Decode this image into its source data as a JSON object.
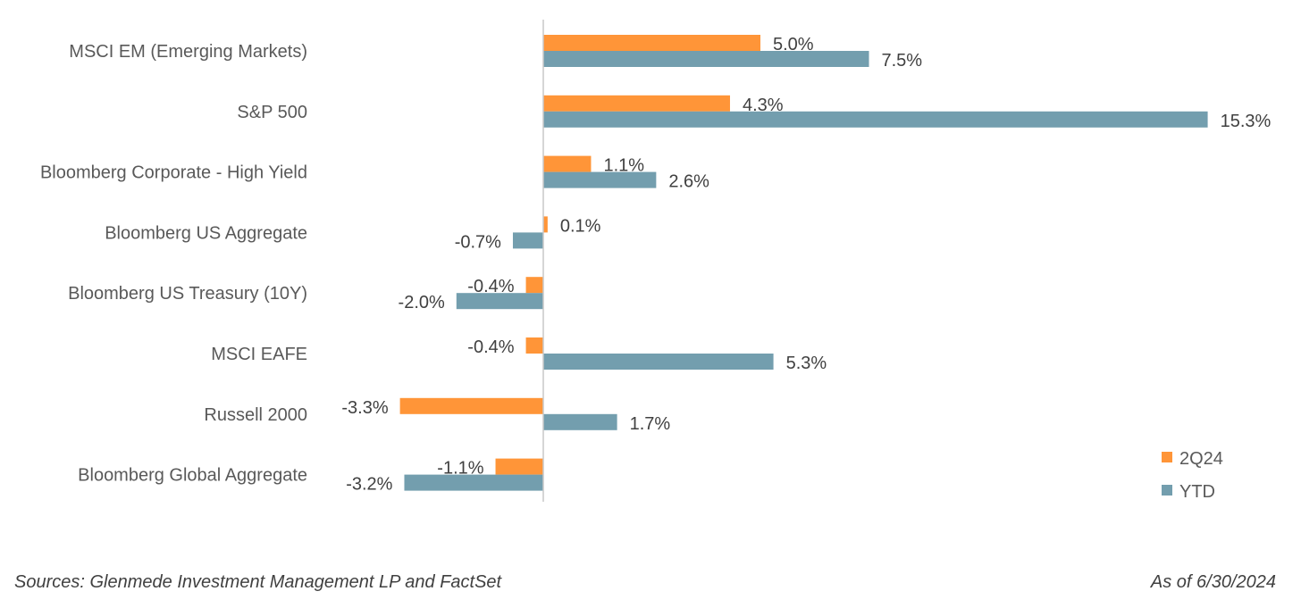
{
  "chart_data": {
    "type": "bar",
    "orientation": "horizontal",
    "categories": [
      "MSCI EM (Emerging Markets)",
      "S&P 500",
      "Bloomberg Corporate - High Yield",
      "Bloomberg US Aggregate",
      "Bloomberg US Treasury (10Y)",
      "MSCI EAFE",
      "Russell 2000",
      "Bloomberg Global Aggregate"
    ],
    "series": [
      {
        "name": "2Q24",
        "color": "#FF9538",
        "values": [
          5.0,
          4.3,
          1.1,
          0.1,
          -0.4,
          -0.4,
          -3.3,
          -1.1
        ],
        "labels": [
          "5.0%",
          "4.3%",
          "1.1%",
          "0.1%",
          "-0.4%",
          "-0.4%",
          "-3.3%",
          "-1.1%"
        ]
      },
      {
        "name": "YTD",
        "color": "#739EAE",
        "values": [
          7.5,
          15.3,
          2.6,
          -0.7,
          -2.0,
          5.3,
          1.7,
          -3.2
        ],
        "labels": [
          "7.5%",
          "15.3%",
          "2.6%",
          "-0.7%",
          "-2.0%",
          "5.3%",
          "1.7%",
          "-3.2%"
        ]
      }
    ],
    "legend_position": "bottom-right",
    "grid": false,
    "xlim": [
      -4,
      16
    ]
  },
  "footer": {
    "source": "Sources: Glenmede Investment Management LP and FactSet",
    "as_of": "As of 6/30/2024"
  }
}
